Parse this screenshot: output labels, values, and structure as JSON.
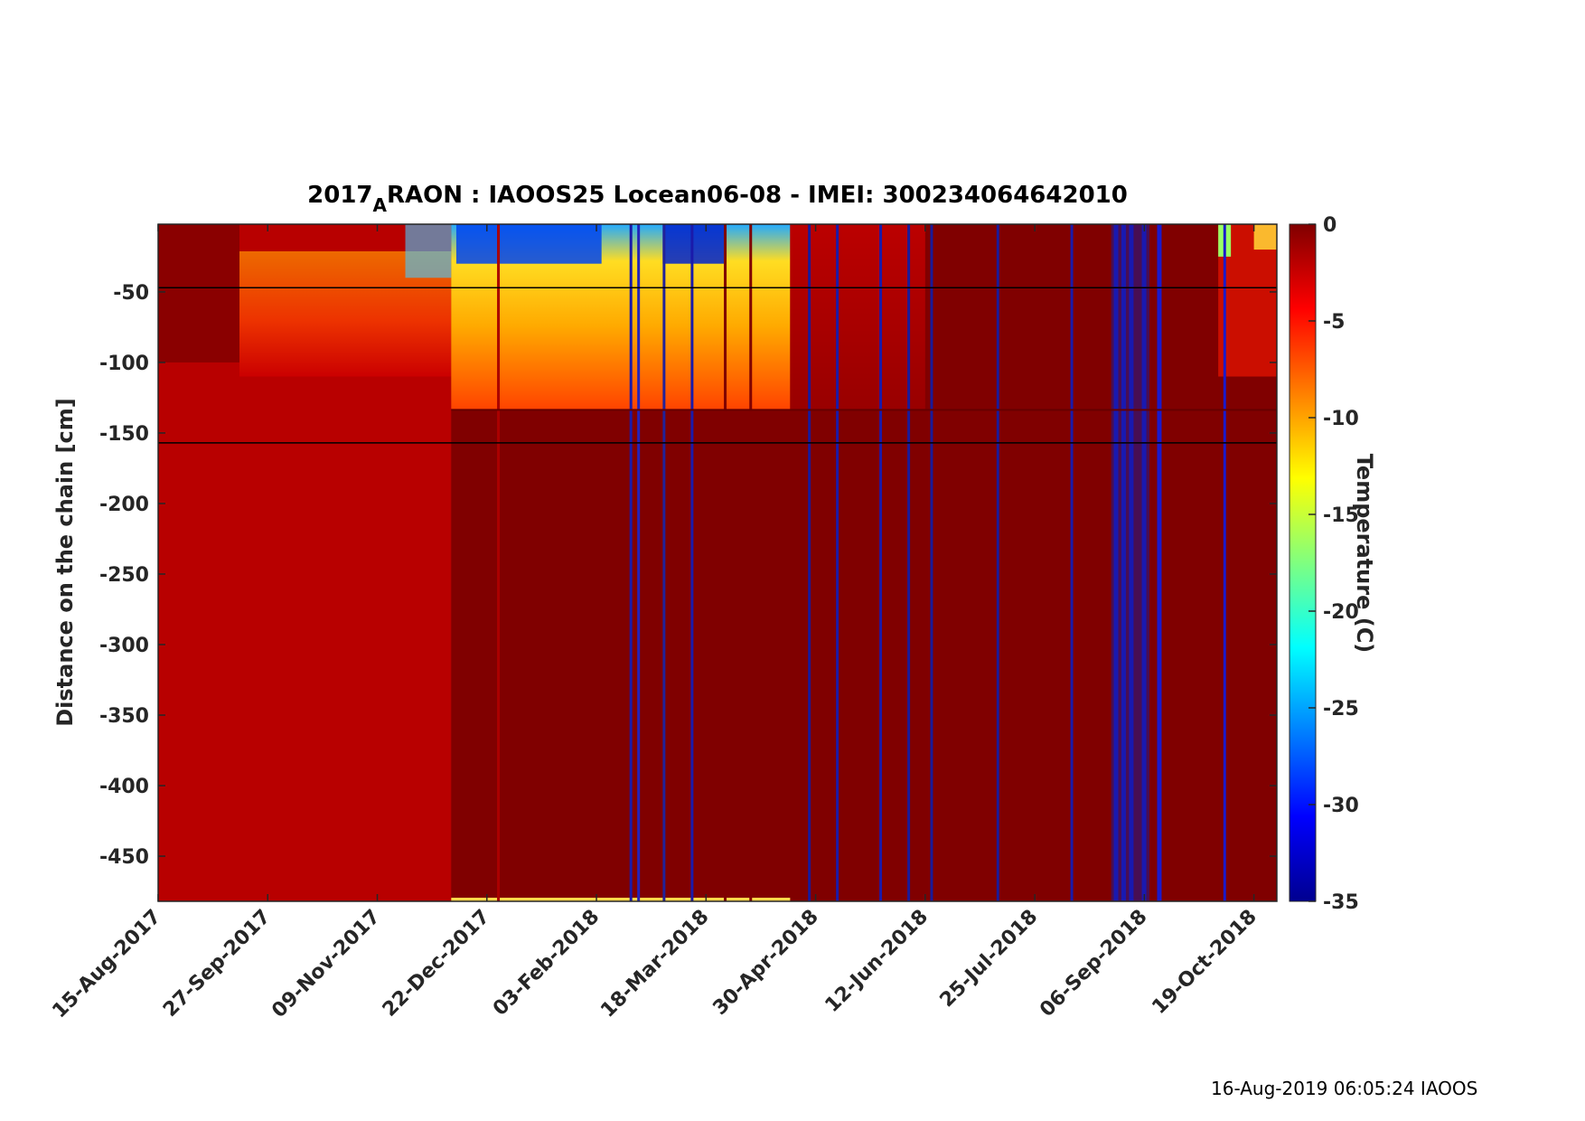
{
  "chart_data": {
    "type": "heatmap",
    "title_main": "2017",
    "title_sub": "A",
    "title_rest": "RAON : IAOOS25  Locean06-08 - IMEI: 300234064642010",
    "ylabel": "Distance on the chain [cm]",
    "colorbar_label": "Temperature (C)",
    "colormap": "jet",
    "x_range": [
      "2017-08-15",
      "2018-10-28"
    ],
    "x_tick_labels": [
      "15-Aug-2017",
      "27-Sep-2017",
      "09-Nov-2017",
      "22-Dec-2017",
      "03-Feb-2018",
      "18-Mar-2018",
      "30-Apr-2018",
      "12-Jun-2018",
      "25-Jul-2018",
      "06-Sep-2018",
      "19-Oct-2018"
    ],
    "x_tick_dates": [
      "2017-08-15",
      "2017-09-27",
      "2017-11-09",
      "2017-12-22",
      "2018-02-03",
      "2018-03-18",
      "2018-04-30",
      "2018-06-12",
      "2018-07-25",
      "2018-09-06",
      "2018-10-19"
    ],
    "ylim": [
      -482,
      -2
    ],
    "y_ticks": [
      -50,
      -100,
      -150,
      -200,
      -250,
      -300,
      -350,
      -400,
      -450
    ],
    "clim": [
      -35,
      0
    ],
    "colorbar_ticks": [
      0,
      -5,
      -10,
      -15,
      -20,
      -25,
      -30,
      -35
    ],
    "reference_lines_y": [
      -47,
      -157
    ],
    "approx_interface_depth": -133,
    "interface_change_date": "2017-12-08"
  },
  "footer": {
    "timestamp": "16-Aug-2019 06:05:24 IAOOS"
  }
}
